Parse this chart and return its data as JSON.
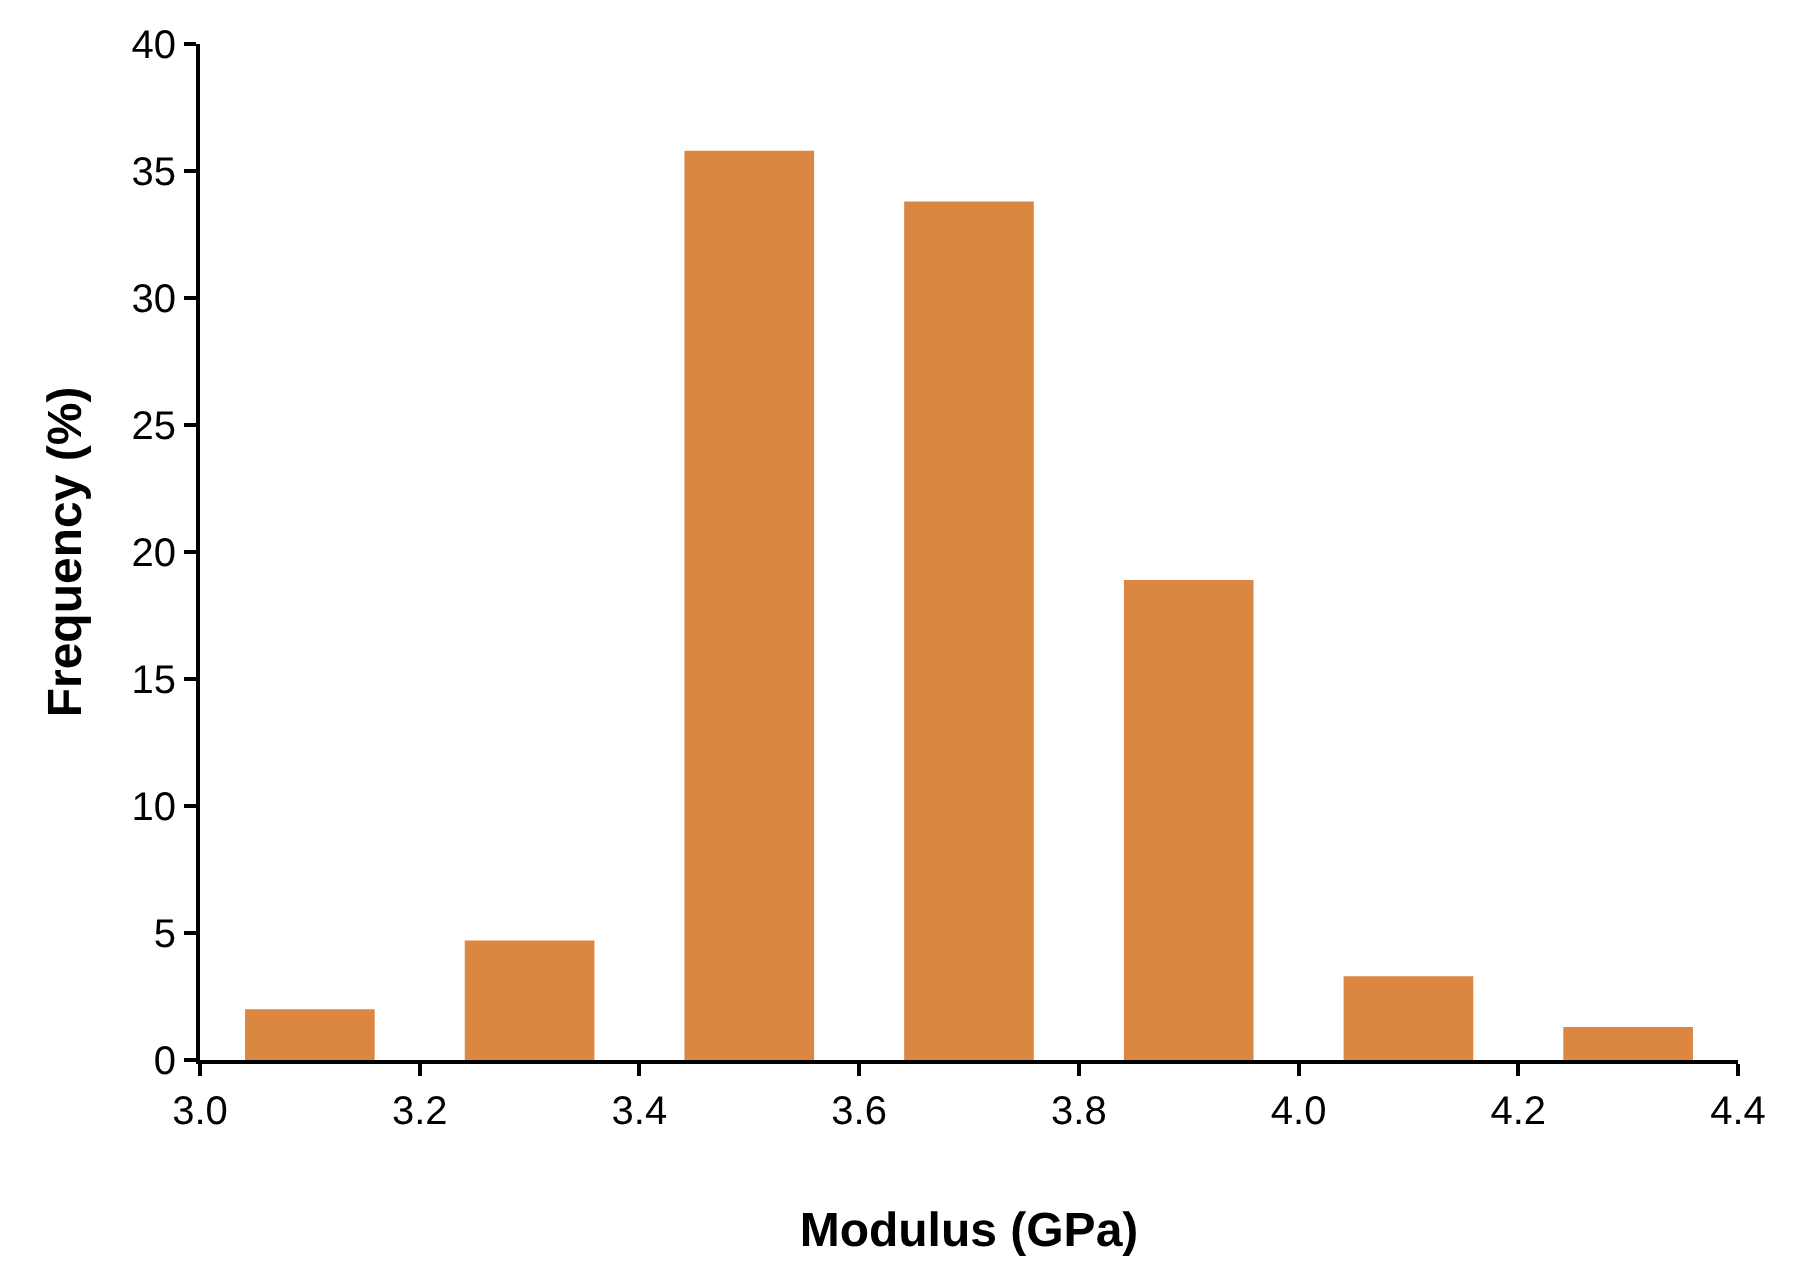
{
  "chart_data": {
    "type": "histogram",
    "xlabel": "Modulus (GPa)",
    "ylabel": "Frequency (%)",
    "bins": [
      3.0,
      3.2,
      3.4,
      3.6,
      3.8,
      4.0,
      4.2,
      4.4
    ],
    "values": [
      2.0,
      4.7,
      35.8,
      33.8,
      18.9,
      3.3,
      1.3
    ],
    "color": "#db8641",
    "xlim": [
      3.0,
      4.4
    ],
    "xticks": [
      {
        "value": 3.0,
        "label": "3.0"
      },
      3.2,
      3.4,
      3.6,
      3.8,
      {
        "value": 4.0,
        "label": "4.0"
      },
      4.2,
      4.4
    ],
    "ylim": [
      0,
      40
    ],
    "yticks": [
      0,
      5,
      10,
      15,
      20,
      25,
      30,
      35,
      40
    ]
  }
}
